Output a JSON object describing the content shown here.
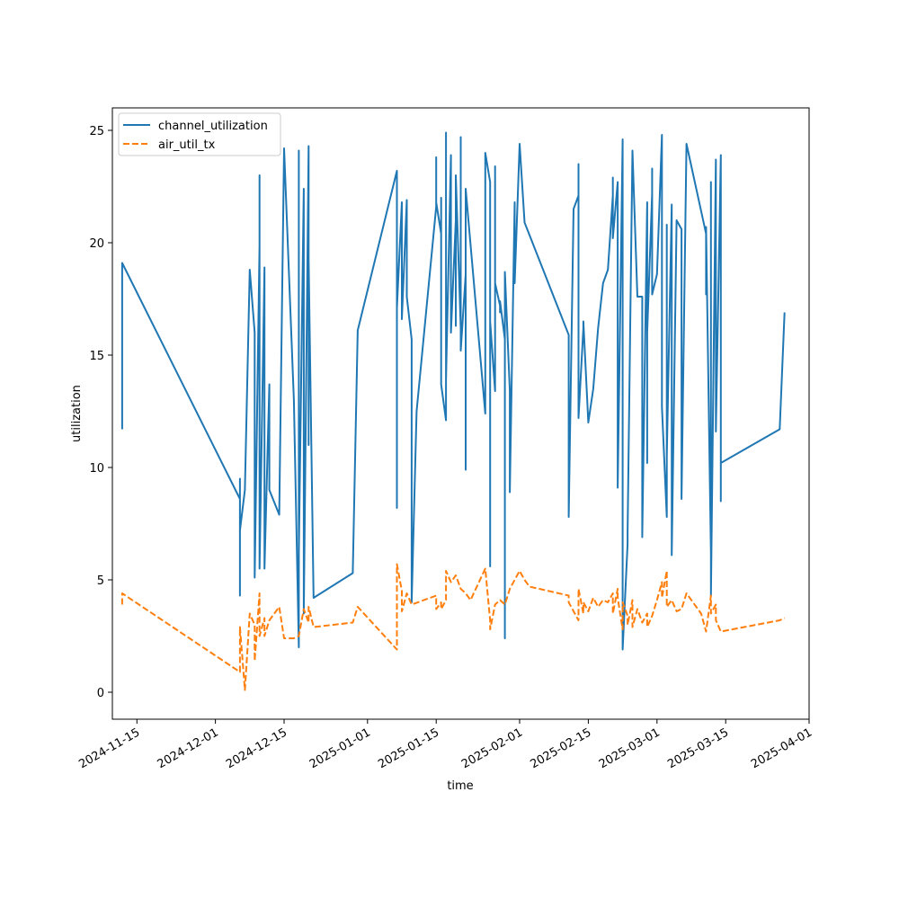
{
  "chart_data": {
    "type": "line",
    "title": "",
    "xlabel": "time",
    "ylabel": "utilization",
    "x_type": "date",
    "xlim": [
      "2024-11-10",
      "2025-04-01"
    ],
    "ylim": [
      -1.2,
      26.0
    ],
    "x_ticks": [
      "2024-11-15",
      "2024-12-01",
      "2024-12-15",
      "2025-01-01",
      "2025-01-15",
      "2025-02-01",
      "2025-02-15",
      "2025-03-01",
      "2025-03-15",
      "2025-04-01"
    ],
    "y_ticks": [
      0,
      5,
      10,
      15,
      20,
      25
    ],
    "grid": false,
    "legend_position": "top-left",
    "series": [
      {
        "name": "channel_utilization",
        "color": "#1f77b4",
        "dash": "solid",
        "points": [
          [
            "2024-11-12",
            11.7
          ],
          [
            "2024-11-12",
            14.0
          ],
          [
            "2024-11-12",
            19.1
          ],
          [
            "2024-12-06",
            8.6
          ],
          [
            "2024-12-06",
            9.5
          ],
          [
            "2024-12-06",
            4.3
          ],
          [
            "2024-12-06",
            7.2
          ],
          [
            "2024-12-07",
            9.0
          ],
          [
            "2024-12-08",
            18.8
          ],
          [
            "2024-12-09",
            16.0
          ],
          [
            "2024-12-09",
            9.7
          ],
          [
            "2024-12-09",
            5.1
          ],
          [
            "2024-12-10",
            19.9
          ],
          [
            "2024-12-10",
            8.8
          ],
          [
            "2024-12-10",
            23.0
          ],
          [
            "2024-12-10",
            5.5
          ],
          [
            "2024-12-11",
            18.9
          ],
          [
            "2024-12-11",
            10.2
          ],
          [
            "2024-12-11",
            12.6
          ],
          [
            "2024-12-11",
            5.5
          ],
          [
            "2024-12-12",
            13.7
          ],
          [
            "2024-12-12",
            9.0
          ],
          [
            "2024-12-14",
            7.9
          ],
          [
            "2024-12-15",
            24.2
          ],
          [
            "2024-12-17",
            13.0
          ],
          [
            "2024-12-18",
            2.0
          ],
          [
            "2024-12-18",
            24.1
          ],
          [
            "2024-12-18",
            6.2
          ],
          [
            "2024-12-19",
            22.4
          ],
          [
            "2024-12-19",
            3.5
          ],
          [
            "2024-12-20",
            24.3
          ],
          [
            "2024-12-20",
            11.0
          ],
          [
            "2024-12-20",
            19.3
          ],
          [
            "2024-12-21",
            4.2
          ],
          [
            "2024-12-29",
            5.3
          ],
          [
            "2024-12-30",
            16.1
          ],
          [
            "2025-01-07",
            23.2
          ],
          [
            "2025-01-07",
            8.2
          ],
          [
            "2025-01-07",
            21.4
          ],
          [
            "2025-01-07",
            17.1
          ],
          [
            "2025-01-08",
            21.8
          ],
          [
            "2025-01-08",
            16.6
          ],
          [
            "2025-01-09",
            21.9
          ],
          [
            "2025-01-09",
            17.6
          ],
          [
            "2025-01-10",
            15.7
          ],
          [
            "2025-01-10",
            4.0
          ],
          [
            "2025-01-11",
            12.5
          ],
          [
            "2025-01-15",
            21.6
          ],
          [
            "2025-01-15",
            23.8
          ],
          [
            "2025-01-15",
            21.8
          ],
          [
            "2025-01-16",
            20.4
          ],
          [
            "2025-01-16",
            22.0
          ],
          [
            "2025-01-16",
            13.7
          ],
          [
            "2025-01-17",
            12.1
          ],
          [
            "2025-01-17",
            24.9
          ],
          [
            "2025-01-17",
            13.9
          ],
          [
            "2025-01-18",
            23.9
          ],
          [
            "2025-01-18",
            16.0
          ],
          [
            "2025-01-19",
            21.0
          ],
          [
            "2025-01-19",
            16.3
          ],
          [
            "2025-01-19",
            23.0
          ],
          [
            "2025-01-20",
            16.2
          ],
          [
            "2025-01-20",
            24.7
          ],
          [
            "2025-01-20",
            15.2
          ],
          [
            "2025-01-21",
            18.6
          ],
          [
            "2025-01-21",
            9.9
          ],
          [
            "2025-01-21",
            22.4
          ],
          [
            "2025-01-25",
            12.4
          ],
          [
            "2025-01-25",
            24.0
          ],
          [
            "2025-01-26",
            22.7
          ],
          [
            "2025-01-26",
            16.6
          ],
          [
            "2025-01-26",
            5.6
          ],
          [
            "2025-01-26",
            16.5
          ],
          [
            "2025-01-27",
            13.4
          ],
          [
            "2025-01-27",
            23.0
          ],
          [
            "2025-01-27",
            14.4
          ],
          [
            "2025-01-27",
            23.4
          ],
          [
            "2025-01-27",
            18.2
          ],
          [
            "2025-01-28",
            17.2
          ],
          [
            "2025-01-28",
            16.9
          ],
          [
            "2025-01-28",
            17.4
          ],
          [
            "2025-01-29",
            15.7
          ],
          [
            "2025-01-29",
            2.4
          ],
          [
            "2025-01-29",
            18.7
          ],
          [
            "2025-01-30",
            13.4
          ],
          [
            "2025-01-30",
            8.9
          ],
          [
            "2025-01-31",
            21.8
          ],
          [
            "2025-01-31",
            18.2
          ],
          [
            "2025-02-01",
            24.4
          ],
          [
            "2025-02-02",
            20.9
          ],
          [
            "2025-02-11",
            15.9
          ],
          [
            "2025-02-11",
            7.8
          ],
          [
            "2025-02-12",
            21.5
          ],
          [
            "2025-02-13",
            22.1
          ],
          [
            "2025-02-13",
            23.5
          ],
          [
            "2025-02-13",
            12.2
          ],
          [
            "2025-02-14",
            16.2
          ],
          [
            "2025-02-14",
            16.5
          ],
          [
            "2025-02-15",
            12.0
          ],
          [
            "2025-02-16",
            13.5
          ],
          [
            "2025-02-17",
            16.2
          ],
          [
            "2025-02-18",
            18.2
          ],
          [
            "2025-02-19",
            18.8
          ],
          [
            "2025-02-20",
            22.1
          ],
          [
            "2025-02-20",
            22.9
          ],
          [
            "2025-02-20",
            20.2
          ],
          [
            "2025-02-21",
            22.7
          ],
          [
            "2025-02-21",
            9.1
          ],
          [
            "2025-02-22",
            24.6
          ],
          [
            "2025-02-22",
            1.9
          ],
          [
            "2025-02-23",
            6.6
          ],
          [
            "2025-02-23",
            7.1
          ],
          [
            "2025-02-24",
            24.1
          ],
          [
            "2025-02-25",
            17.6
          ],
          [
            "2025-02-26",
            17.6
          ],
          [
            "2025-02-26",
            6.9
          ],
          [
            "2025-02-27",
            21.8
          ],
          [
            "2025-02-27",
            10.2
          ],
          [
            "2025-02-27",
            16.0
          ],
          [
            "2025-02-28",
            22.2
          ],
          [
            "2025-02-28",
            23.3
          ],
          [
            "2025-02-28",
            17.7
          ],
          [
            "2025-03-01",
            18.6
          ],
          [
            "2025-03-02",
            24.8
          ],
          [
            "2025-03-02",
            12.7
          ],
          [
            "2025-03-03",
            7.8
          ],
          [
            "2025-03-03",
            20.8
          ],
          [
            "2025-03-03",
            10.5
          ],
          [
            "2025-03-04",
            21.7
          ],
          [
            "2025-03-04",
            6.1
          ],
          [
            "2025-03-05",
            21.0
          ],
          [
            "2025-03-06",
            20.6
          ],
          [
            "2025-03-06",
            8.6
          ],
          [
            "2025-03-07",
            24.4
          ],
          [
            "2025-03-11",
            20.4
          ],
          [
            "2025-03-11",
            17.7
          ],
          [
            "2025-03-11",
            20.7
          ],
          [
            "2025-03-12",
            6.2
          ],
          [
            "2025-03-12",
            22.7
          ],
          [
            "2025-03-12",
            4.3
          ],
          [
            "2025-03-13",
            23.7
          ],
          [
            "2025-03-13",
            11.6
          ],
          [
            "2025-03-14",
            23.9
          ],
          [
            "2025-03-14",
            8.5
          ],
          [
            "2025-03-14",
            19.8
          ],
          [
            "2025-03-14",
            10.2
          ],
          [
            "2025-03-26",
            11.7
          ],
          [
            "2025-03-27",
            16.9
          ]
        ]
      },
      {
        "name": "air_util_tx",
        "color": "#ff7f0e",
        "dash": "dashed",
        "points": [
          [
            "2024-11-12",
            3.9
          ],
          [
            "2024-11-12",
            4.4
          ],
          [
            "2024-12-06",
            0.9
          ],
          [
            "2024-12-06",
            2.9
          ],
          [
            "2024-12-07",
            0.1
          ],
          [
            "2024-12-08",
            3.5
          ],
          [
            "2024-12-09",
            3.0
          ],
          [
            "2024-12-09",
            1.4
          ],
          [
            "2024-12-10",
            4.4
          ],
          [
            "2024-12-10",
            2.5
          ],
          [
            "2024-12-11",
            3.3
          ],
          [
            "2024-12-11",
            2.5
          ],
          [
            "2024-12-12",
            3.2
          ],
          [
            "2024-12-14",
            3.8
          ],
          [
            "2024-12-15",
            2.4
          ],
          [
            "2024-12-17",
            2.4
          ],
          [
            "2024-12-18",
            2.5
          ],
          [
            "2024-12-19",
            3.7
          ],
          [
            "2024-12-20",
            3.1
          ],
          [
            "2024-12-20",
            3.8
          ],
          [
            "2024-12-21",
            2.9
          ],
          [
            "2024-12-29",
            3.1
          ],
          [
            "2024-12-30",
            3.8
          ],
          [
            "2025-01-07",
            1.9
          ],
          [
            "2025-01-07",
            5.7
          ],
          [
            "2025-01-08",
            4.5
          ],
          [
            "2025-01-08",
            3.6
          ],
          [
            "2025-01-09",
            4.4
          ],
          [
            "2025-01-10",
            3.9
          ],
          [
            "2025-01-15",
            4.3
          ],
          [
            "2025-01-15",
            3.7
          ],
          [
            "2025-01-16",
            4.0
          ],
          [
            "2025-01-16",
            3.7
          ],
          [
            "2025-01-17",
            4.1
          ],
          [
            "2025-01-17",
            5.4
          ],
          [
            "2025-01-18",
            4.9
          ],
          [
            "2025-01-19",
            5.2
          ],
          [
            "2025-01-20",
            4.6
          ],
          [
            "2025-01-21",
            4.4
          ],
          [
            "2025-01-22",
            4.1
          ],
          [
            "2025-01-25",
            5.5
          ],
          [
            "2025-01-26",
            3.2
          ],
          [
            "2025-01-26",
            2.8
          ],
          [
            "2025-01-27",
            3.9
          ],
          [
            "2025-01-28",
            4.1
          ],
          [
            "2025-01-29",
            3.9
          ],
          [
            "2025-01-30",
            4.6
          ],
          [
            "2025-01-31",
            5.0
          ],
          [
            "2025-02-01",
            5.4
          ],
          [
            "2025-02-02",
            5.0
          ],
          [
            "2025-02-03",
            4.7
          ],
          [
            "2025-02-11",
            4.3
          ],
          [
            "2025-02-11",
            4.0
          ],
          [
            "2025-02-12",
            3.6
          ],
          [
            "2025-02-13",
            3.2
          ],
          [
            "2025-02-13",
            4.6
          ],
          [
            "2025-02-14",
            3.5
          ],
          [
            "2025-02-14",
            4.0
          ],
          [
            "2025-02-15",
            3.6
          ],
          [
            "2025-02-16",
            4.2
          ],
          [
            "2025-02-17",
            3.8
          ],
          [
            "2025-02-18",
            4.1
          ],
          [
            "2025-02-19",
            4.0
          ],
          [
            "2025-02-20",
            4.4
          ],
          [
            "2025-02-20",
            3.5
          ],
          [
            "2025-02-21",
            4.6
          ],
          [
            "2025-02-21",
            4.2
          ],
          [
            "2025-02-22",
            2.8
          ],
          [
            "2025-02-22",
            4.0
          ],
          [
            "2025-02-23",
            3.4
          ],
          [
            "2025-02-23",
            3.0
          ],
          [
            "2025-02-24",
            4.1
          ],
          [
            "2025-02-24",
            2.9
          ],
          [
            "2025-02-25",
            3.7
          ],
          [
            "2025-02-26",
            3.1
          ],
          [
            "2025-02-27",
            3.5
          ],
          [
            "2025-02-27",
            2.9
          ],
          [
            "2025-02-28",
            3.4
          ],
          [
            "2025-03-01",
            4.1
          ],
          [
            "2025-03-02",
            4.9
          ],
          [
            "2025-03-02",
            4.2
          ],
          [
            "2025-03-03",
            5.4
          ],
          [
            "2025-03-03",
            3.8
          ],
          [
            "2025-03-04",
            4.1
          ],
          [
            "2025-03-05",
            3.6
          ],
          [
            "2025-03-06",
            3.7
          ],
          [
            "2025-03-07",
            4.4
          ],
          [
            "2025-03-10",
            3.5
          ],
          [
            "2025-03-11",
            2.7
          ],
          [
            "2025-03-12",
            4.3
          ],
          [
            "2025-03-12",
            3.5
          ],
          [
            "2025-03-13",
            3.9
          ],
          [
            "2025-03-13",
            3.2
          ],
          [
            "2025-03-14",
            2.7
          ],
          [
            "2025-03-26",
            3.2
          ],
          [
            "2025-03-27",
            3.3
          ]
        ]
      }
    ]
  }
}
